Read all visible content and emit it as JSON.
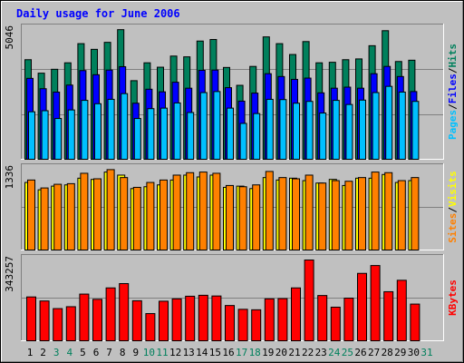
{
  "chart_data": [
    {
      "type": "bar",
      "title": "Daily usage for June 2006",
      "panel": "hits-files-pages",
      "max_label": "5046",
      "categories": [
        "1",
        "2",
        "3",
        "4",
        "5",
        "6",
        "7",
        "8",
        "9",
        "10",
        "11",
        "12",
        "13",
        "14",
        "15",
        "16",
        "17",
        "18",
        "19",
        "20",
        "21",
        "22",
        "23",
        "24",
        "25",
        "26",
        "27",
        "28",
        "29",
        "30",
        "31"
      ],
      "series": [
        {
          "name": "Hits",
          "color": "#00805c",
          "values": [
            3880,
            3360,
            3510,
            3760,
            4500,
            4280,
            4550,
            5040,
            3070,
            3760,
            3590,
            4020,
            3990,
            4600,
            4660,
            3580,
            2890,
            3620,
            4760,
            4500,
            4080,
            4580,
            3760,
            3780,
            3880,
            3910,
            4420,
            5000,
            3810,
            3860,
            0
          ]
        },
        {
          "name": "Files",
          "color": "#0000ff",
          "values": [
            3160,
            2760,
            2630,
            2900,
            3460,
            3300,
            3480,
            3610,
            2200,
            2740,
            2640,
            3010,
            2780,
            3470,
            3480,
            2800,
            2280,
            2590,
            3340,
            3230,
            3120,
            3170,
            2600,
            2780,
            2820,
            2780,
            3340,
            3620,
            3230,
            2650,
            0
          ]
        },
        {
          "name": "Pages",
          "color": "#00c0ff",
          "values": [
            1870,
            1910,
            1610,
            1940,
            2310,
            2180,
            2350,
            2570,
            1610,
            1990,
            2010,
            2210,
            1840,
            2610,
            2650,
            2010,
            1420,
            1800,
            2350,
            2340,
            2200,
            2270,
            1820,
            2310,
            2150,
            2320,
            2610,
            2850,
            2630,
            2270,
            0
          ]
        }
      ],
      "legend": [
        "Pages",
        "Files",
        "Hits"
      ],
      "legend_placement": "right"
    },
    {
      "type": "bar",
      "panel": "visits-sites",
      "max_label": "1336",
      "categories": [
        "1",
        "2",
        "3",
        "4",
        "5",
        "6",
        "7",
        "8",
        "9",
        "10",
        "11",
        "12",
        "13",
        "14",
        "15",
        "16",
        "17",
        "18",
        "19",
        "20",
        "21",
        "22",
        "23",
        "24",
        "25",
        "26",
        "27",
        "28",
        "29",
        "30",
        "31"
      ],
      "series": [
        {
          "name": "Visits",
          "color": "#ffff00",
          "values": [
            1120,
            1000,
            1060,
            1080,
            1190,
            1170,
            1290,
            1240,
            1020,
            1050,
            1080,
            1160,
            1240,
            1210,
            1240,
            1040,
            1060,
            1020,
            1200,
            1160,
            1190,
            1150,
            1110,
            1170,
            1070,
            1190,
            1190,
            1250,
            1120,
            1150,
            0
          ]
        },
        {
          "name": "Sites",
          "color": "#ff8000",
          "values": [
            1160,
            1030,
            1090,
            1100,
            1270,
            1180,
            1330,
            1200,
            1040,
            1120,
            1160,
            1240,
            1280,
            1290,
            1270,
            1070,
            1050,
            1080,
            1300,
            1200,
            1180,
            1240,
            1110,
            1150,
            1140,
            1200,
            1290,
            1280,
            1150,
            1200,
            0
          ]
        }
      ],
      "legend": [
        "Sites",
        "Visits"
      ],
      "legend_placement": "right"
    },
    {
      "type": "bar",
      "panel": "kbytes",
      "max_label": "343257",
      "categories": [
        "1",
        "2",
        "3",
        "4",
        "5",
        "6",
        "7",
        "8",
        "9",
        "10",
        "11",
        "12",
        "13",
        "14",
        "15",
        "16",
        "17",
        "18",
        "19",
        "20",
        "21",
        "22",
        "23",
        "24",
        "25",
        "26",
        "27",
        "28",
        "29",
        "30",
        "31"
      ],
      "series": [
        {
          "name": "KBytes",
          "color": "#ff0000",
          "values": [
            188000,
            171000,
            139000,
            147000,
            200000,
            178000,
            226000,
            244000,
            172000,
            118000,
            170000,
            180000,
            191000,
            195000,
            192000,
            152000,
            136000,
            134000,
            180000,
            181000,
            226000,
            343257,
            194000,
            145000,
            183000,
            287000,
            320000,
            210000,
            258000,
            158000,
            0
          ]
        }
      ],
      "legend": [
        "KBytes"
      ],
      "legend_placement": "right"
    }
  ],
  "colors": {
    "background": "#c0c0c0",
    "plot_background": "#c0c0c0",
    "title": "#0000ff",
    "weekend_label": "#00805c",
    "weekday_label": "#000000"
  },
  "weekend_days": [
    "3",
    "4",
    "10",
    "11",
    "17",
    "18",
    "24",
    "25",
    "31"
  ],
  "legend_separator": "/"
}
